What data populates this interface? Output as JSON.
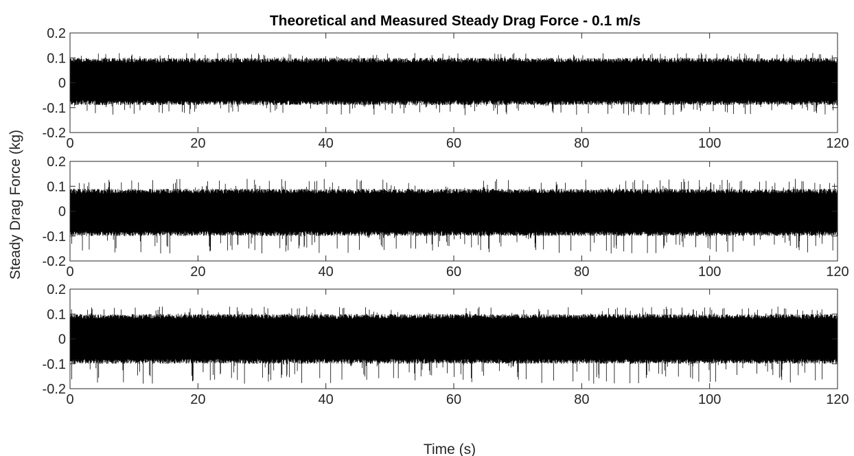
{
  "figure": {
    "title": "Theoretical and Measured Steady Drag Force - 0.1 m/s",
    "ylabel": "Steady Drag Force (kg)",
    "xlabel": "Time (s)"
  },
  "chart_data": [
    {
      "type": "line",
      "title": "Theoretical and Measured Steady Drag Force - 0.1 m/s",
      "xlabel": "",
      "ylabel": "",
      "xlim": [
        0,
        120
      ],
      "ylim": [
        -0.2,
        0.2
      ],
      "xticks": [
        "0",
        "20",
        "40",
        "60",
        "80",
        "100",
        "120"
      ],
      "yticks": [
        "0.2",
        "0.1",
        "0",
        "-0.1",
        "-0.2"
      ],
      "grid": false,
      "series_color": "#000000",
      "signal": {
        "mean": 0.0,
        "band_low": -0.08,
        "band_high": 0.09,
        "peak_low": -0.13,
        "peak_high": 0.12
      }
    },
    {
      "type": "line",
      "xlabel": "",
      "ylabel": "",
      "xlim": [
        0,
        120
      ],
      "ylim": [
        -0.2,
        0.2
      ],
      "xticks": [
        "0",
        "20",
        "40",
        "60",
        "80",
        "100",
        "120"
      ],
      "yticks": [
        "0.2",
        "0.1",
        "0",
        "-0.1",
        "-0.2"
      ],
      "grid": false,
      "series_color": "#000000",
      "signal": {
        "mean": 0.0,
        "band_low": -0.09,
        "band_high": 0.08,
        "peak_low": -0.17,
        "peak_high": 0.13
      }
    },
    {
      "type": "line",
      "xlabel": "Time (s)",
      "ylabel": "",
      "xlim": [
        0,
        120
      ],
      "ylim": [
        -0.2,
        0.2
      ],
      "xticks": [
        "0",
        "20",
        "40",
        "60",
        "80",
        "100",
        "120"
      ],
      "yticks": [
        "0.2",
        "0.1",
        "0",
        "-0.1",
        "-0.2"
      ],
      "grid": false,
      "series_color": "#000000",
      "signal": {
        "mean": 0.0,
        "band_low": -0.09,
        "band_high": 0.09,
        "peak_low": -0.18,
        "peak_high": 0.13
      }
    }
  ]
}
